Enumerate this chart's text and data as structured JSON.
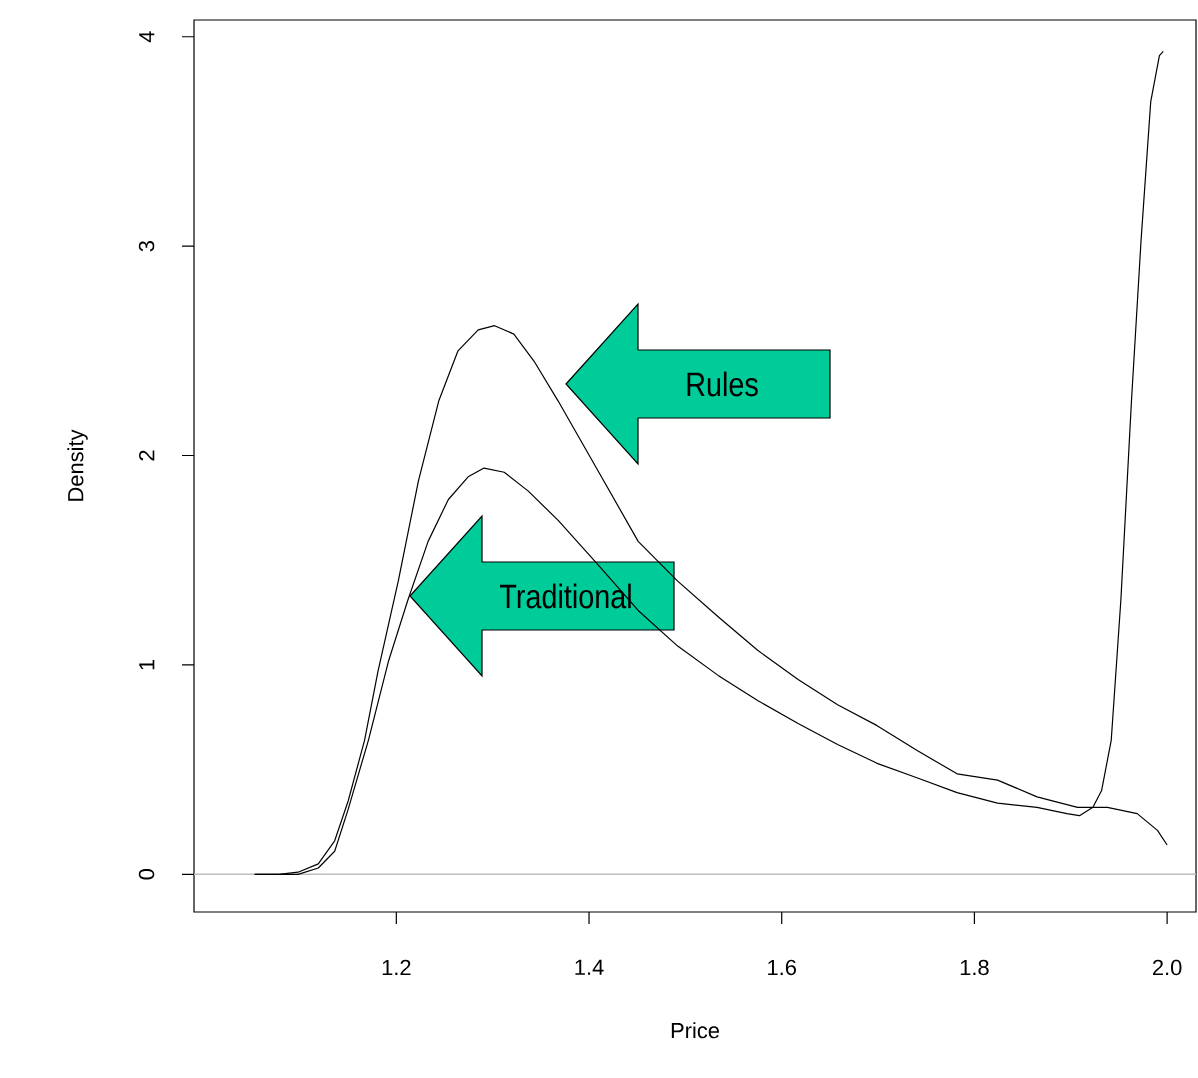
{
  "chart_data": {
    "type": "line",
    "xlabel": "Price",
    "ylabel": "Density",
    "xlim": [
      0.99,
      2.03
    ],
    "ylim": [
      -0.18,
      4.08
    ],
    "xticks": [
      1.2,
      1.4,
      1.6,
      1.8,
      {
        "value": 2,
        "label": "2.0"
      }
    ],
    "yticks": [
      0,
      1,
      2,
      3,
      4
    ],
    "ref_lines": [
      {
        "axis": "y",
        "value": 0,
        "color": "#bebebe"
      }
    ],
    "annotations": [
      "Rules",
      "Traditional"
    ],
    "series": [
      {
        "color": "#000000",
        "x": [
          1.053,
          1.078,
          1.098,
          1.119,
          1.136,
          1.15,
          1.167,
          1.181,
          1.202,
          1.223,
          1.244,
          1.264,
          1.285,
          1.302,
          1.322,
          1.343,
          1.368,
          1.409,
          1.451,
          1.492,
          1.534,
          1.575,
          1.617,
          1.658,
          1.699,
          1.741,
          1.782,
          1.824,
          1.865,
          1.907,
          1.938,
          1.969,
          1.99,
          2.0
        ],
        "values": [
          0,
          0,
          0.01,
          0.05,
          0.16,
          0.35,
          0.64,
          0.97,
          1.4,
          1.88,
          2.26,
          2.5,
          2.6,
          2.62,
          2.58,
          2.45,
          2.26,
          1.93,
          1.59,
          1.4,
          1.23,
          1.07,
          0.93,
          0.81,
          0.71,
          0.59,
          0.48,
          0.45,
          0.37,
          0.32,
          0.32,
          0.29,
          0.21,
          0.14
        ]
      },
      {
        "color": "#000000",
        "x": [
          1.053,
          1.098,
          1.119,
          1.136,
          1.15,
          1.171,
          1.192,
          1.212,
          1.233,
          1.254,
          1.275,
          1.291,
          1.312,
          1.337,
          1.368,
          1.409,
          1.451,
          1.492,
          1.534,
          1.575,
          1.617,
          1.658,
          1.699,
          1.741,
          1.782,
          1.824,
          1.865,
          1.896,
          1.909,
          1.923,
          1.932,
          1.942,
          1.952,
          1.963,
          1.973,
          1.983,
          1.992,
          1.996
        ],
        "values": [
          0,
          0,
          0.03,
          0.11,
          0.31,
          0.64,
          1.02,
          1.31,
          1.59,
          1.79,
          1.9,
          1.94,
          1.92,
          1.83,
          1.69,
          1.48,
          1.26,
          1.09,
          0.95,
          0.83,
          0.72,
          0.62,
          0.53,
          0.46,
          0.39,
          0.34,
          0.32,
          0.29,
          0.28,
          0.32,
          0.4,
          0.64,
          1.31,
          2.26,
          3.03,
          3.69,
          3.91,
          3.93
        ]
      }
    ]
  }
}
